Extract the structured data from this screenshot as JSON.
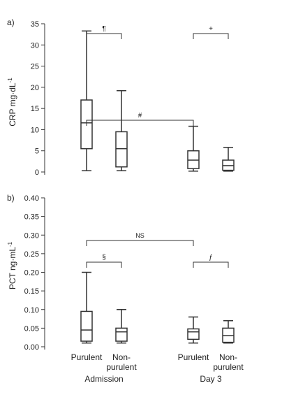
{
  "chart_data": [
    {
      "type": "box",
      "panel_label": "a)",
      "ylabel": "CRP mg·dL",
      "ylabel_sup": "-1",
      "ylim": [
        0,
        35
      ],
      "yticks": [
        "0",
        "5",
        "10",
        "15",
        "20",
        "25",
        "30",
        "35"
      ],
      "boxes": [
        {
          "group": "Admission",
          "category": "Purulent",
          "min": 0.3,
          "q1": 5.5,
          "median": 11.6,
          "q3": 17.0,
          "max": 33.3
        },
        {
          "group": "Admission",
          "category": "Non-purulent",
          "min": 0.3,
          "q1": 1.2,
          "median": 5.5,
          "q3": 9.5,
          "max": 19.2
        },
        {
          "group": "Day 3",
          "category": "Purulent",
          "min": 0.2,
          "q1": 0.8,
          "median": 2.8,
          "q3": 5.0,
          "max": 10.8
        },
        {
          "group": "Day 3",
          "category": "Non-purulent",
          "min": 0.2,
          "q1": 0.4,
          "median": 1.5,
          "q3": 2.8,
          "max": 5.8
        }
      ],
      "annotations": [
        {
          "symbol": "#",
          "from": 0,
          "to": 2
        },
        {
          "symbol": "¶",
          "from": 0,
          "to": 1
        },
        {
          "symbol": "+",
          "from": 2,
          "to": 3
        }
      ]
    },
    {
      "type": "box",
      "panel_label": "b)",
      "ylabel": "PCT ng·mL",
      "ylabel_sup": "-1",
      "ylim": [
        0,
        0.4
      ],
      "yticks": [
        "0.00",
        "0.05",
        "0.10",
        "0.15",
        "0.20",
        "0.25",
        "0.30",
        "0.35",
        "0.40"
      ],
      "boxes": [
        {
          "group": "Admission",
          "category": "Purulent",
          "min": 0.01,
          "q1": 0.015,
          "median": 0.045,
          "q3": 0.095,
          "max": 0.2
        },
        {
          "group": "Admission",
          "category": "Non-purulent",
          "min": 0.01,
          "q1": 0.015,
          "median": 0.04,
          "q3": 0.05,
          "max": 0.1
        },
        {
          "group": "Day 3",
          "category": "Purulent",
          "min": 0.01,
          "q1": 0.02,
          "median": 0.04,
          "q3": 0.048,
          "max": 0.08
        },
        {
          "group": "Day 3",
          "category": "Non-purulent",
          "min": 0.01,
          "q1": 0.012,
          "median": 0.03,
          "q3": 0.05,
          "max": 0.07
        }
      ],
      "annotations": [
        {
          "symbol": "NS",
          "from": 0,
          "to": 2
        },
        {
          "symbol": "§",
          "from": 0,
          "to": 1
        },
        {
          "symbol": "ƒ",
          "from": 2,
          "to": 3
        }
      ]
    }
  ],
  "x_axis": {
    "category_labels": [
      {
        "line1": "Purulent",
        "line2": ""
      },
      {
        "line1": "Non-",
        "line2": "purulent"
      },
      {
        "line1": "Purulent",
        "line2": ""
      },
      {
        "line1": "Non-",
        "line2": "purulent"
      }
    ],
    "group_labels": [
      "Admission",
      "Day 3"
    ]
  }
}
